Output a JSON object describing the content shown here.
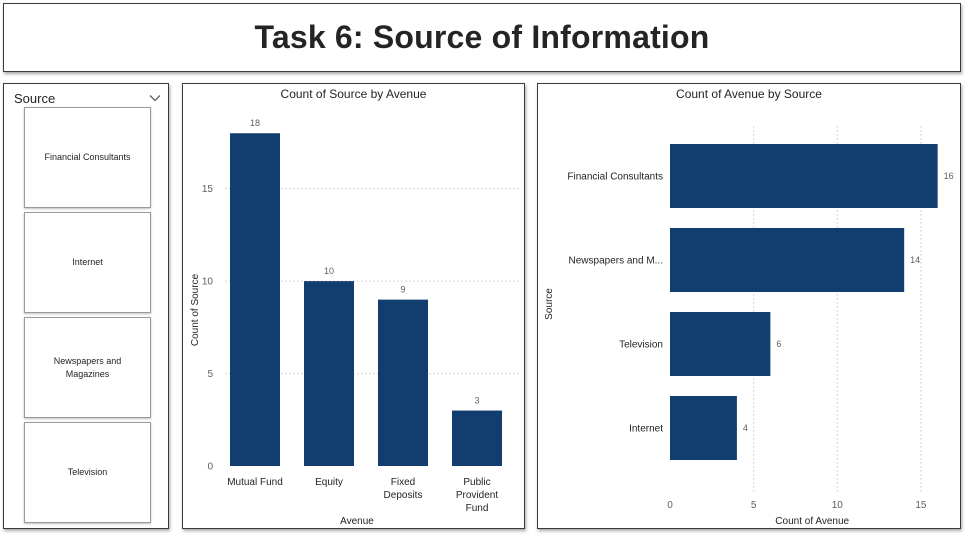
{
  "page": {
    "title": "Task 6: Source of Information"
  },
  "slicer": {
    "label": "Source",
    "items": [
      "Financial Consultants",
      "Internet",
      "Newspapers and Magazines",
      "Television"
    ]
  },
  "colors": {
    "bar": "#123d6f",
    "grid": "#c8c8c8",
    "axis_text": "#605e5c",
    "label_text": "#252423"
  },
  "chart_data": [
    {
      "type": "bar",
      "orientation": "vertical",
      "title": "Count of Source by Avenue",
      "xlabel": "Avenue",
      "ylabel": "Count of Source",
      "categories": [
        "Mutual Fund",
        "Equity",
        "Fixed Deposits",
        "Public Provident Fund"
      ],
      "values": [
        18,
        10,
        9,
        3
      ],
      "yticks": [
        0,
        5,
        10,
        15
      ],
      "ylim": [
        0,
        18.5
      ],
      "grid": true
    },
    {
      "type": "bar",
      "orientation": "horizontal",
      "title": "Count of Avenue by Source",
      "xlabel": "Count of Avenue",
      "ylabel": "Source",
      "categories": [
        "Financial Consultants",
        "Newspapers and M...",
        "Television",
        "Internet"
      ],
      "values": [
        16,
        14,
        6,
        4
      ],
      "xticks": [
        0,
        5,
        10,
        15
      ],
      "xlim": [
        0,
        16.5
      ],
      "grid": true
    }
  ]
}
